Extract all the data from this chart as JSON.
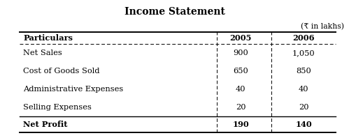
{
  "title": "Income Statement",
  "currency_note": "(₹ in lakhs)",
  "headers": [
    "Particulars",
    "2005",
    "2006"
  ],
  "rows": [
    [
      "Net Sales",
      "900",
      "1,050"
    ],
    [
      "Cost of Goods Sold",
      "650",
      "850"
    ],
    [
      "Administrative Expenses",
      "40",
      "40"
    ],
    [
      "Selling Expenses",
      "20",
      "20"
    ]
  ],
  "footer": [
    "Net Profit",
    "190",
    "140"
  ],
  "background_color": "#ffffff",
  "title_fontsize": 10,
  "body_fontsize": 8.2,
  "note_fontsize": 7.8
}
